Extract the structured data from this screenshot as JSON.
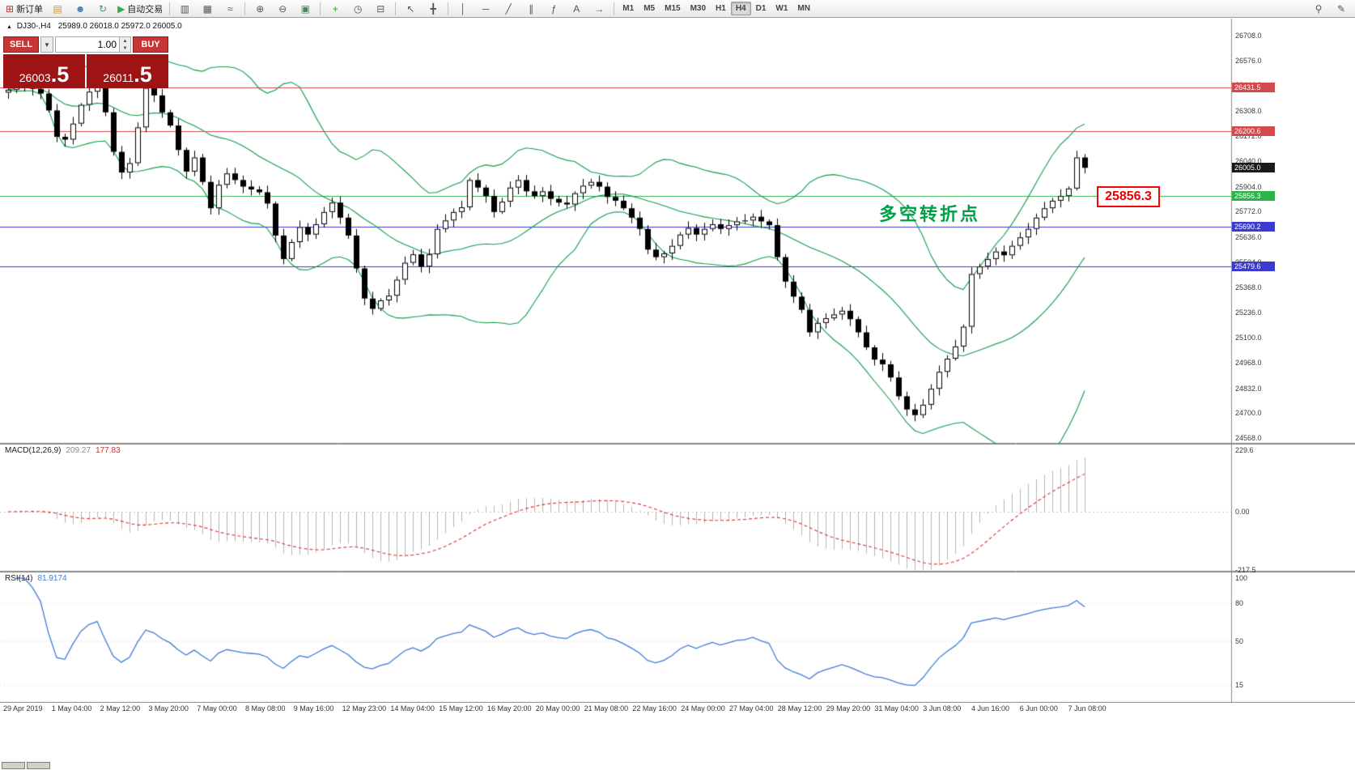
{
  "toolbar": {
    "items": [
      {
        "name": "new-order-button",
        "glyph": "⊞",
        "color": "#b33939",
        "label": "新订单"
      },
      {
        "name": "chart-window-icon",
        "glyph": "▤",
        "color": "#c79b2e"
      },
      {
        "name": "profile-icon",
        "glyph": "☻",
        "color": "#4a7ab5"
      },
      {
        "name": "refresh-icon",
        "glyph": "↻",
        "color": "#3a9a5c"
      },
      {
        "name": "autotrading-button",
        "glyph": "▶",
        "color": "#2fae4a",
        "label": "自动交易"
      },
      {
        "sep": true
      },
      {
        "name": "bar-chart-button",
        "glyph": "▥"
      },
      {
        "name": "candlestick-chart-button",
        "glyph": "▦"
      },
      {
        "name": "line-chart-button",
        "glyph": "≈"
      },
      {
        "sep": true
      },
      {
        "name": "zoom-in-button",
        "glyph": "⊕"
      },
      {
        "name": "zoom-out-button",
        "glyph": "⊖"
      },
      {
        "name": "tile-windows-button",
        "glyph": "▣",
        "color": "#3a8a5c"
      },
      {
        "sep": true
      },
      {
        "name": "indicators-button",
        "glyph": "+",
        "color": "#19a319"
      },
      {
        "name": "periods-button",
        "glyph": "◷"
      },
      {
        "name": "templates-button",
        "glyph": "⊟"
      },
      {
        "sep": true
      },
      {
        "name": "cursor-button",
        "glyph": "↖"
      },
      {
        "name": "crosshair-button",
        "glyph": "╋"
      },
      {
        "sep": true
      },
      {
        "name": "vertical-line-button",
        "glyph": "│"
      },
      {
        "name": "horizontal-line-button",
        "glyph": "─"
      },
      {
        "name": "trendline-button",
        "glyph": "╱"
      },
      {
        "name": "channel-button",
        "glyph": "∥"
      },
      {
        "name": "fibonacci-button",
        "glyph": "ƒ"
      },
      {
        "name": "text-button",
        "glyph": "A"
      },
      {
        "name": "arrows-button",
        "glyph": "→"
      },
      {
        "sep": true
      }
    ],
    "timeframes": [
      "M1",
      "M5",
      "M15",
      "M30",
      "H1",
      "H4",
      "D1",
      "W1",
      "MN"
    ],
    "active_timeframe": "H4",
    "right_icons": [
      {
        "name": "search-icon",
        "glyph": "⚲"
      },
      {
        "name": "pencil-icon",
        "glyph": "✎"
      }
    ]
  },
  "one_click": {
    "collapse_glyph": "▲",
    "sell_label": "SELL",
    "buy_label": "BUY",
    "volume": "1.00",
    "dropdown_glyph": "▼",
    "spin_up": "▲",
    "spin_down": "▼",
    "sell_price_main": "26003",
    "sell_price_frac": ".5",
    "buy_price_main": "26011",
    "buy_price_frac": ".5"
  },
  "chart": {
    "header_symbol": "DJ30-,H4",
    "header_ohlc": "25989.0 26018.0 25972.0 26005.0",
    "annotation_price": "25856.3",
    "annotation_text": "多空转折点",
    "scale_ticks": [
      26708,
      26576,
      26444,
      26308,
      26172,
      26040,
      25904,
      25772,
      25636,
      25504,
      25368,
      25236,
      25100,
      24968,
      24832,
      24700,
      24568
    ],
    "hlines": [
      {
        "value": 26431.5,
        "label": "26431.5",
        "color": "#d24a4a"
      },
      {
        "value": 26200.6,
        "label": "26200.6",
        "color": "#d24a4a"
      },
      {
        "value": 25856.3,
        "label": "25856.3",
        "color": "#2db34a"
      },
      {
        "value": 25690.2,
        "label": "25690.2",
        "color": "#3b3bd1"
      },
      {
        "value": 25479.6,
        "label": "25479.6",
        "color": "#3b3bd1"
      }
    ],
    "current_price": {
      "value": 26005.0,
      "label": "26005.0",
      "tag_color": "#1a1a1a"
    }
  },
  "macd": {
    "name": "MACD(12,26,9)",
    "main_value": "209.27",
    "signal_value": "177.83",
    "scale_max": "229.6",
    "scale_zero": "0.00",
    "scale_min": "-217.5"
  },
  "rsi": {
    "name": "RSI(14)",
    "value": "81.9174",
    "scale_levels": [
      100,
      80,
      50,
      15
    ]
  },
  "chart_data": {
    "type": "candlestick",
    "symbol": "DJ30-",
    "timeframe": "H4",
    "title": "DJ30-,H4",
    "ohlc_current": {
      "open": 25989.0,
      "high": 26018.0,
      "low": 25972.0,
      "close": 26005.0
    },
    "y_range": [
      24568,
      26708
    ],
    "closes": [
      26420,
      26435,
      26440,
      26425,
      26400,
      26310,
      26170,
      26155,
      26240,
      26340,
      26410,
      26445,
      26300,
      26090,
      25980,
      26030,
      26220,
      26430,
      26390,
      26300,
      26230,
      26100,
      25985,
      26060,
      25930,
      25790,
      25915,
      25975,
      25940,
      25905,
      25890,
      25875,
      25815,
      25645,
      25520,
      25610,
      25690,
      25650,
      25705,
      25770,
      25820,
      25740,
      25645,
      25470,
      25310,
      25255,
      25300,
      25325,
      25410,
      25500,
      25545,
      25480,
      25545,
      25680,
      25725,
      25770,
      25795,
      25940,
      25900,
      25855,
      25770,
      25825,
      25900,
      25940,
      25880,
      25855,
      25880,
      25840,
      25820,
      25810,
      25870,
      25910,
      25930,
      25905,
      25850,
      25830,
      25790,
      25740,
      25680,
      25570,
      25530,
      25550,
      25590,
      25650,
      25685,
      25650,
      25680,
      25705,
      25680,
      25700,
      25720,
      25725,
      25745,
      25720,
      25700,
      25530,
      25400,
      25320,
      25250,
      25130,
      25180,
      25205,
      25225,
      25245,
      25200,
      25130,
      25050,
      24985,
      24960,
      24890,
      24790,
      24720,
      24690,
      24745,
      24830,
      24920,
      24990,
      25055,
      25160,
      25440,
      25480,
      25520,
      25560,
      25540,
      25590,
      25635,
      25680,
      25740,
      25790,
      25830,
      25855,
      25895,
      26060,
      26005
    ],
    "x_labels": [
      "29 Apr 2019",
      "1 May 04:00",
      "2 May 12:00",
      "3 May 20:00",
      "7 May 00:00",
      "8 May 08:00",
      "9 May 16:00",
      "12 May 23:00",
      "14 May 04:00",
      "15 May 12:00",
      "16 May 20:00",
      "20 May 00:00",
      "21 May 08:00",
      "22 May 16:00",
      "24 May 00:00",
      "27 May 04:00",
      "28 May 12:00",
      "29 May 20:00",
      "31 May 04:00",
      "3 Jun 08:00",
      "4 Jun 16:00",
      "6 Jun 00:00",
      "7 Jun 08:00"
    ],
    "overlays": {
      "name": "Bollinger Bands",
      "period": 20,
      "deviation": 2,
      "color": "#119c4b"
    },
    "levels": [
      26431.5,
      26200.6,
      25856.3,
      25690.2,
      25479.6
    ],
    "indicators": [
      {
        "name": "MACD",
        "params": [
          12,
          26,
          9
        ],
        "last_main": 209.27,
        "last_signal": 177.83,
        "scale": [
          -217.5,
          229.6
        ]
      },
      {
        "name": "RSI",
        "params": [
          14
        ],
        "last": 81.9174,
        "scale": [
          0,
          100
        ]
      }
    ]
  }
}
